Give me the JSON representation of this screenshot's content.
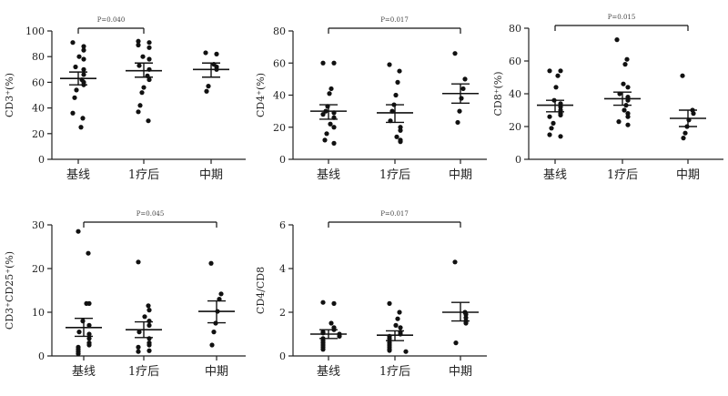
{
  "chart_data": [
    {
      "type": "scatter",
      "ylabel": "CD3⁺(%)",
      "ylim": [
        0,
        100
      ],
      "yticks": [
        0,
        20,
        40,
        60,
        80,
        100
      ],
      "categories": [
        "基线",
        "1疗后",
        "中期"
      ],
      "comparison": {
        "from": 0,
        "to": 1,
        "label": "P=0.040"
      },
      "groups": [
        {
          "values": [
            91,
            88,
            85,
            80,
            78,
            72,
            70,
            66,
            62,
            60,
            58,
            54,
            48,
            36,
            32,
            25
          ],
          "mean": 63,
          "sem_low": 58,
          "sem_high": 68
        },
        {
          "values": [
            92,
            91,
            89,
            87,
            80,
            78,
            73,
            70,
            65,
            62,
            56,
            52,
            42,
            37,
            30
          ],
          "mean": 69,
          "sem_low": 64,
          "sem_high": 75
        },
        {
          "values": [
            83,
            82,
            74,
            72,
            70,
            57,
            53
          ],
          "mean": 70,
          "sem_low": 64,
          "sem_high": 75
        }
      ]
    },
    {
      "type": "scatter",
      "ylabel": "CD4⁺(%)",
      "ylim": [
        0,
        80
      ],
      "yticks": [
        0,
        20,
        40,
        60,
        80
      ],
      "categories": [
        "基线",
        "1疗后",
        "中期"
      ],
      "comparison": {
        "from": 0,
        "to": 2,
        "label": "P=0.017"
      },
      "groups": [
        {
          "values": [
            60,
            60,
            44,
            41,
            33,
            30,
            29,
            28,
            26,
            22,
            20,
            16,
            12,
            10
          ],
          "mean": 30,
          "sem_low": 25,
          "sem_high": 34
        },
        {
          "values": [
            59,
            55,
            48,
            40,
            34,
            30,
            24,
            20,
            18,
            14,
            12,
            11
          ],
          "mean": 29,
          "sem_low": 23,
          "sem_high": 34
        },
        {
          "values": [
            66,
            50,
            44,
            38,
            30,
            23
          ],
          "mean": 41,
          "sem_low": 35,
          "sem_high": 47
        }
      ]
    },
    {
      "type": "scatter",
      "ylabel": "CD8⁺(%)",
      "ylim": [
        0,
        80
      ],
      "yticks": [
        0,
        20,
        40,
        60,
        80
      ],
      "categories": [
        "基线",
        "1疗后",
        "中期"
      ],
      "comparison": {
        "from": 0,
        "to": 2,
        "label": "P=0.015"
      },
      "groups": [
        {
          "values": [
            54,
            54,
            51,
            44,
            36,
            34,
            32,
            30,
            28,
            27,
            26,
            22,
            19,
            15,
            14
          ],
          "mean": 33,
          "sem_low": 29,
          "sem_high": 36
        },
        {
          "values": [
            73,
            61,
            58,
            46,
            44,
            40,
            38,
            36,
            33,
            30,
            28,
            26,
            23,
            21
          ],
          "mean": 37,
          "sem_low": 33,
          "sem_high": 41
        },
        {
          "values": [
            51,
            30,
            28,
            24,
            20,
            16,
            13
          ],
          "mean": 25,
          "sem_low": 20,
          "sem_high": 30
        }
      ]
    },
    {
      "type": "scatter",
      "ylabel": "CD3⁺CD25⁺(%)",
      "ylim": [
        0,
        30
      ],
      "yticks": [
        0,
        10,
        20,
        30
      ],
      "categories": [
        "基线",
        "1疗后",
        "中期"
      ],
      "comparison": {
        "from": 0,
        "to": 2,
        "label": "P=0.045"
      },
      "groups": [
        {
          "values": [
            28.5,
            23.5,
            12,
            12,
            8,
            7,
            5.5,
            5,
            4,
            3,
            2.5,
            2,
            1.5,
            1,
            0.5
          ],
          "mean": 6.5,
          "sem_low": 4.5,
          "sem_high": 8.6
        },
        {
          "values": [
            21.5,
            11.5,
            10.5,
            9,
            8,
            7,
            5.5,
            4,
            3,
            2.5,
            2,
            1.2,
            1
          ],
          "mean": 6,
          "sem_low": 4.2,
          "sem_high": 7.8
        },
        {
          "values": [
            21.2,
            14.2,
            13,
            10.2,
            7.5,
            5.5,
            2.5
          ],
          "mean": 10.2,
          "sem_low": 7.6,
          "sem_high": 12.6
        }
      ]
    },
    {
      "type": "scatter",
      "ylabel": "CD4/CD8",
      "ylim": [
        0,
        6
      ],
      "yticks": [
        0,
        2,
        4,
        6
      ],
      "categories": [
        "基线",
        "1疗后",
        "中期"
      ],
      "comparison": {
        "from": 0,
        "to": 2,
        "label": "P=0.017"
      },
      "groups": [
        {
          "values": [
            2.45,
            2.4,
            1.5,
            1.3,
            1.2,
            1.1,
            1.05,
            1,
            0.9,
            0.8,
            0.7,
            0.6,
            0.5,
            0.4,
            0.3
          ],
          "mean": 1.0,
          "sem_low": 0.8,
          "sem_high": 1.2
        },
        {
          "values": [
            2.4,
            2.0,
            1.7,
            1.4,
            1.3,
            1.1,
            1.0,
            0.9,
            0.8,
            0.7,
            0.6,
            0.5,
            0.4,
            0.3,
            0.25,
            0.2
          ],
          "mean": 0.95,
          "sem_low": 0.7,
          "sem_high": 1.15
        },
        {
          "values": [
            4.3,
            2.0,
            1.9,
            1.75,
            1.6,
            1.5,
            0.6
          ],
          "mean": 2.0,
          "sem_low": 1.6,
          "sem_high": 2.45
        }
      ]
    }
  ]
}
